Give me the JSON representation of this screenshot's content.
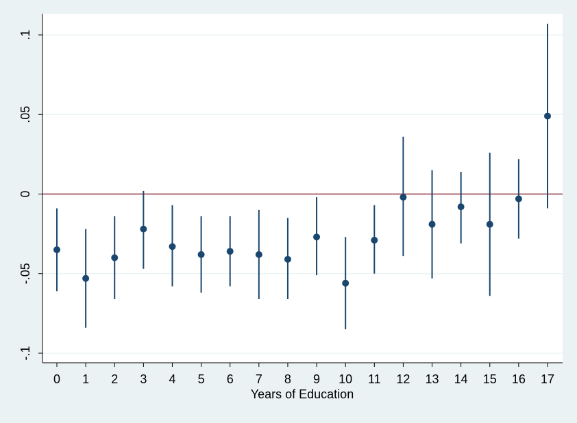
{
  "chart_data": {
    "type": "scatter",
    "title": "",
    "xlabel": "Years of Education",
    "ylabel": "",
    "categories": [
      "0",
      "1",
      "2",
      "3",
      "4",
      "5",
      "6",
      "7",
      "8",
      "9",
      "10",
      "11",
      "12",
      "13",
      "14",
      "15",
      "16",
      "17"
    ],
    "x": [
      0,
      1,
      2,
      3,
      4,
      5,
      6,
      7,
      8,
      9,
      10,
      11,
      12,
      13,
      14,
      15,
      16,
      17
    ],
    "estimates": [
      -0.035,
      -0.053,
      -0.04,
      -0.022,
      -0.033,
      -0.038,
      -0.036,
      -0.038,
      -0.041,
      -0.027,
      -0.056,
      -0.029,
      -0.002,
      -0.019,
      -0.008,
      -0.019,
      -0.003,
      0.049
    ],
    "ci_lower": [
      -0.061,
      -0.084,
      -0.066,
      -0.047,
      -0.058,
      -0.062,
      -0.058,
      -0.066,
      -0.066,
      -0.051,
      -0.085,
      -0.05,
      -0.039,
      -0.053,
      -0.031,
      -0.064,
      -0.028,
      -0.009
    ],
    "ci_upper": [
      -0.009,
      -0.022,
      -0.014,
      0.002,
      -0.007,
      -0.014,
      -0.014,
      -0.01,
      -0.015,
      -0.002,
      -0.027,
      -0.007,
      0.036,
      0.015,
      0.014,
      0.026,
      0.022,
      0.107
    ],
    "reference_line": 0,
    "ylim": [
      -0.1,
      0.1
    ],
    "yticks": [
      -0.1,
      -0.05,
      0,
      0.05,
      0.1
    ],
    "ytick_labels": [
      "-.1",
      "-.05",
      "0",
      ".05",
      ".1"
    ],
    "grid": true,
    "colors": {
      "background": "#eaf2f3",
      "plot_background": "#ffffff",
      "marker": "#1a476f",
      "reference_line": "#90353b",
      "grid": "#eaf2f3",
      "axis": "#000000"
    }
  }
}
